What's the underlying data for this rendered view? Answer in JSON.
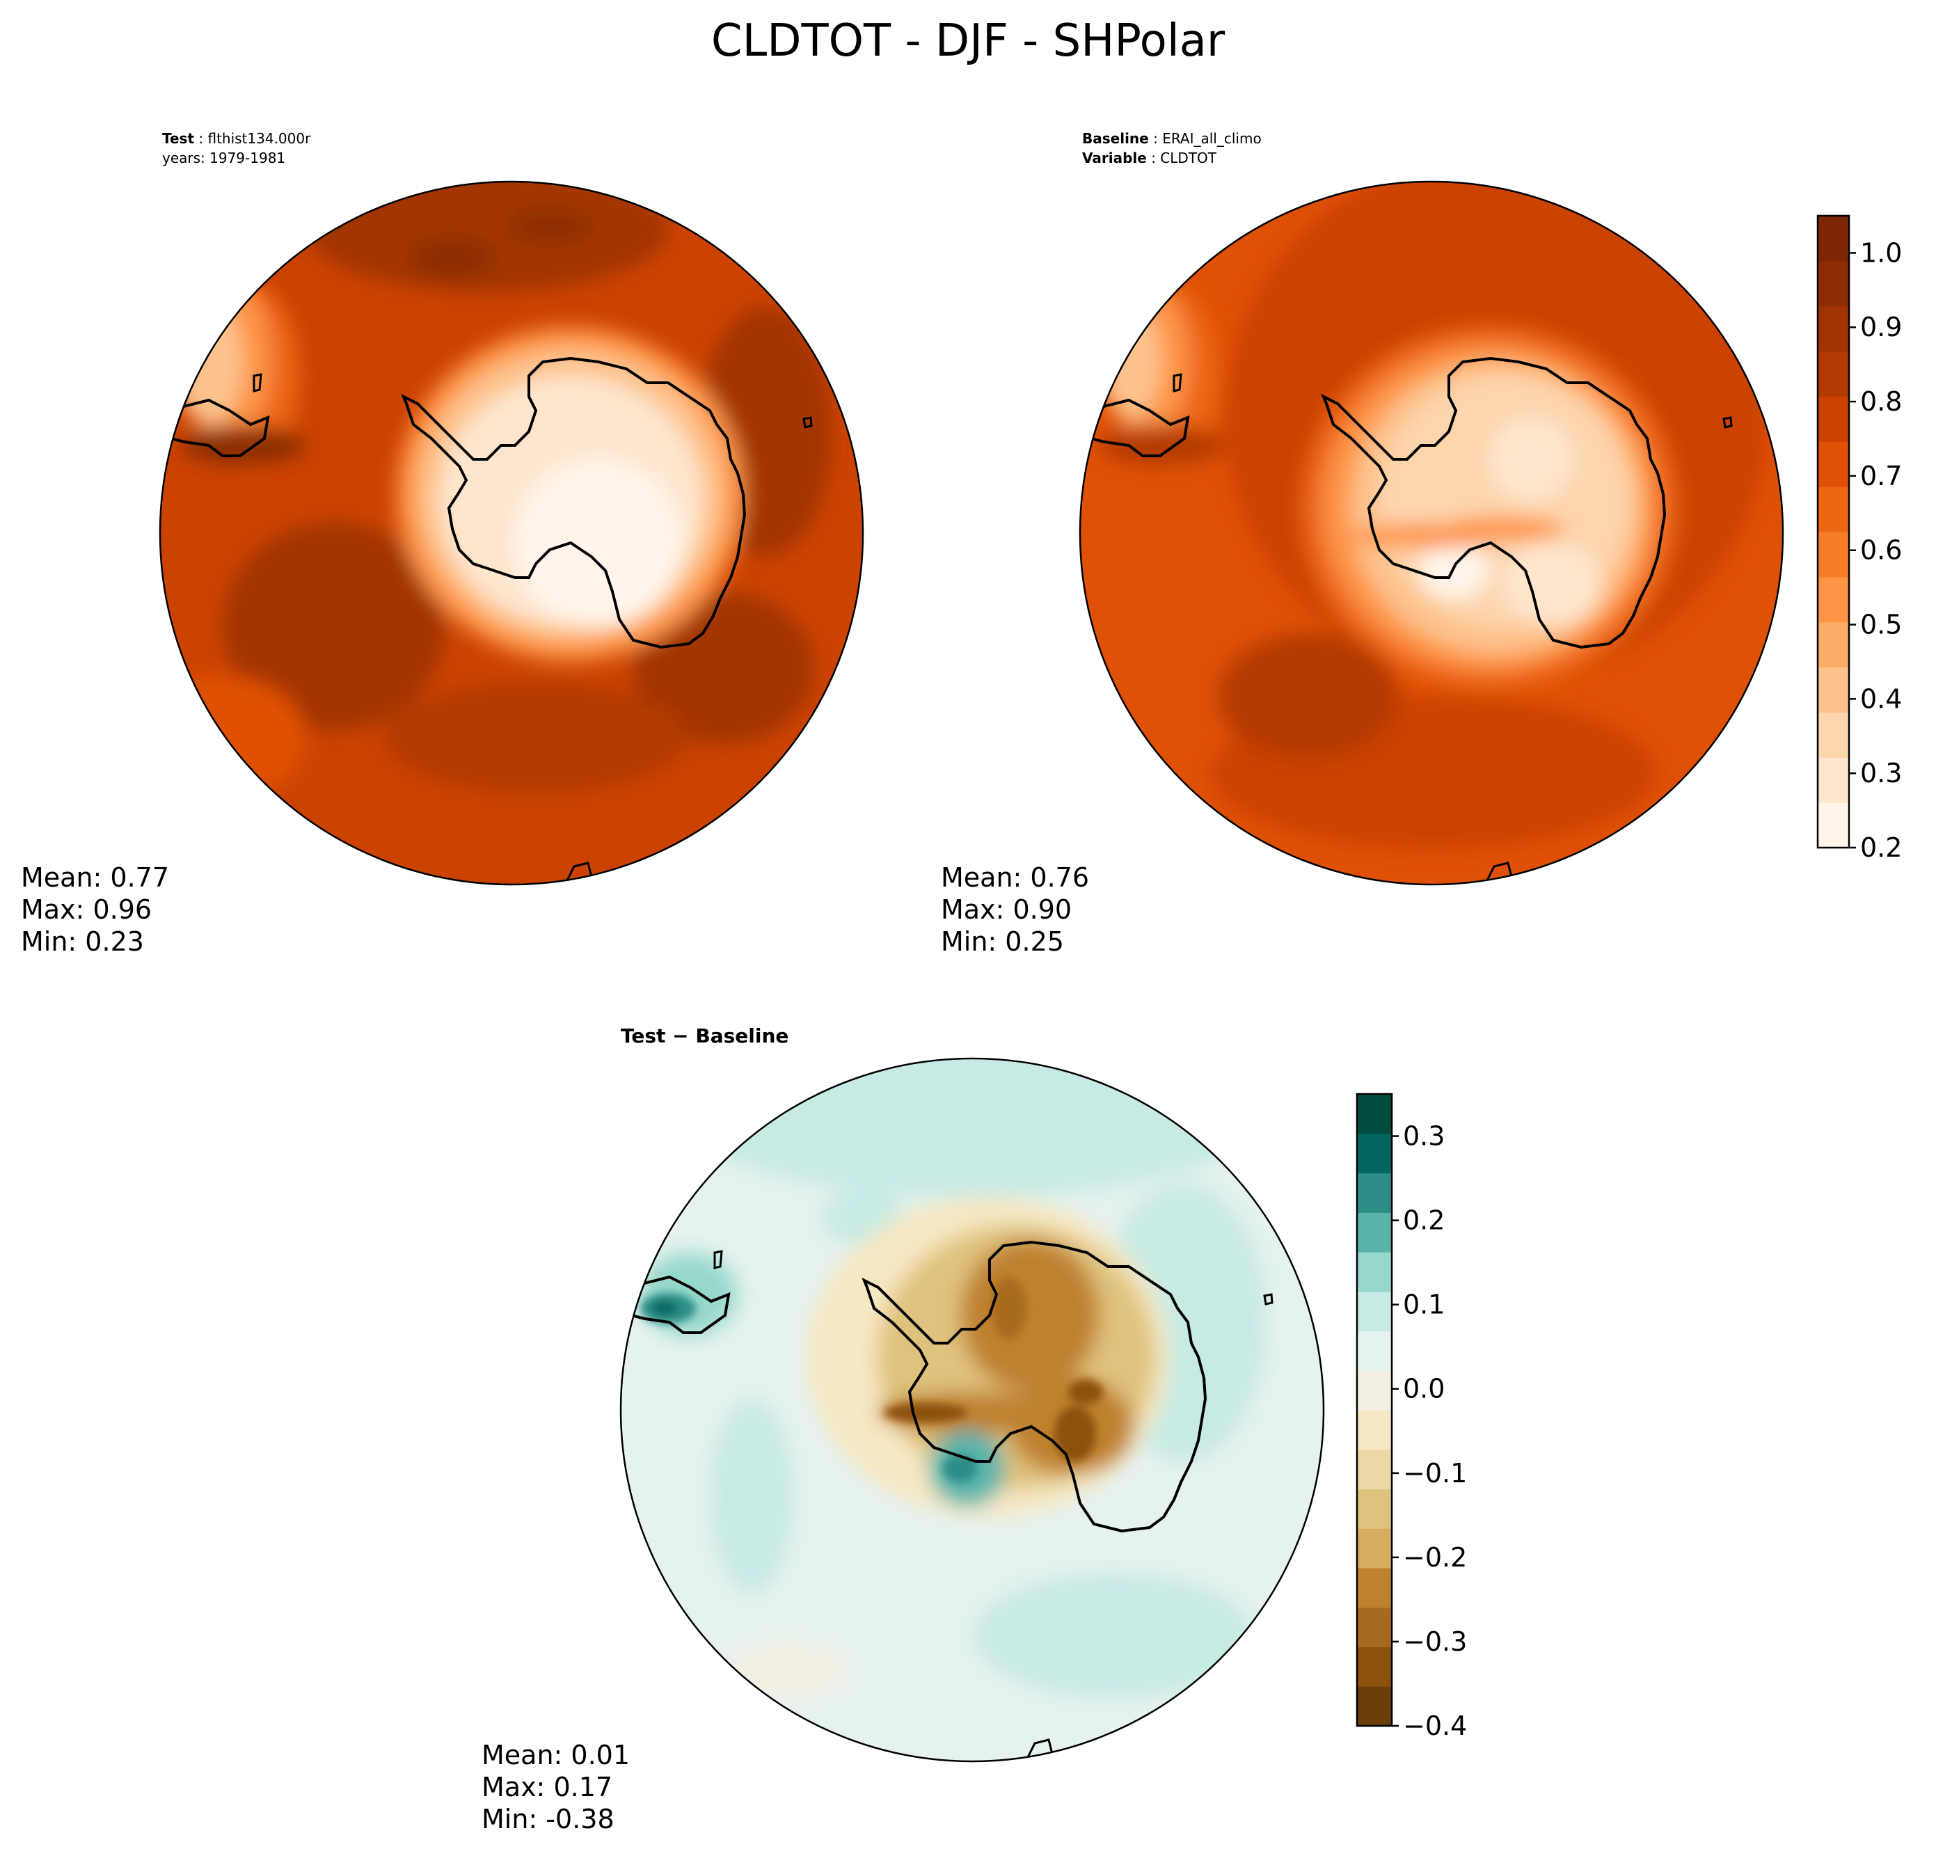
{
  "title": "CLDTOT - DJF - SHPolar",
  "panels": {
    "test": {
      "label_bold": "Test",
      "label_value": "flthist134.000r",
      "sub_line": "years: 1979-1981",
      "stats": {
        "mean": "Mean:  0.77",
        "max": "Max:  0.96",
        "min": "Min:  0.23"
      }
    },
    "baseline": {
      "label_bold": "Baseline",
      "label_value": "ERAI_all_climo",
      "var_bold": "Variable",
      "var_value": "CLDTOT",
      "stats": {
        "mean": "Mean:  0.76",
        "max": "Max:  0.90",
        "min": "Min:  0.25"
      }
    },
    "diff": {
      "label": "Test − Baseline",
      "stats": {
        "mean": "Mean:  0.01",
        "max": "Max:  0.17",
        "min": "Min: -0.38"
      }
    }
  },
  "colorbars": {
    "main": {
      "ticks": [
        "0.2",
        "0.3",
        "0.4",
        "0.5",
        "0.6",
        "0.7",
        "0.8",
        "0.9",
        "1.0"
      ],
      "colors": [
        "#fff5eb",
        "#fee6ce",
        "#fdd6ae",
        "#fdc28c",
        "#fdac68",
        "#fd9446",
        "#f67e29",
        "#ec6614",
        "#df5106",
        "#cc4301",
        "#b33a02",
        "#a23403",
        "#8c2d04",
        "#7f2704"
      ]
    },
    "diff": {
      "ticks": [
        "−0.4",
        "−0.3",
        "−0.2",
        "−0.1",
        "0.0",
        "0.1",
        "0.2",
        "0.3"
      ],
      "colors": [
        "#6a3d0a",
        "#8c510a",
        "#a86a1f",
        "#bf812d",
        "#d6ac5e",
        "#dfc27d",
        "#ecd9a8",
        "#f6e8c3",
        "#f3efe2",
        "#e6f2ef",
        "#c7eae5",
        "#97d8cc",
        "#5ab4ac",
        "#2c8e86",
        "#01665e",
        "#004d40"
      ]
    }
  },
  "chart_data": [
    {
      "type": "heatmap",
      "name": "Test",
      "projection": "south polar stereographic",
      "variable": "CLDTOT",
      "season": "DJF",
      "years": "1979-1981",
      "color_range": [
        0.2,
        1.05
      ],
      "colormap": "Oranges",
      "stats": {
        "mean": 0.77,
        "max": 0.96,
        "min": 0.23
      },
      "field_description": {
        "southern_ocean": [
          0.85,
          0.96
        ],
        "midlatitudes": [
          0.75,
          0.85
        ],
        "antarctic_interior": [
          0.23,
          0.4
        ]
      }
    },
    {
      "type": "heatmap",
      "name": "Baseline",
      "dataset": "ERAI_all_climo",
      "projection": "south polar stereographic",
      "variable": "CLDTOT",
      "color_range": [
        0.2,
        1.05
      ],
      "colormap": "Oranges",
      "stats": {
        "mean": 0.76,
        "max": 0.9,
        "min": 0.25
      },
      "field_description": {
        "southern_ocean": [
          0.82,
          0.9
        ],
        "midlatitudes": [
          0.75,
          0.82
        ],
        "antarctic_interior": [
          0.25,
          0.55
        ]
      }
    },
    {
      "type": "heatmap",
      "name": "Test − Baseline",
      "projection": "south polar stereographic",
      "color_range": [
        -0.4,
        0.35
      ],
      "colormap": "BrBG",
      "stats": {
        "mean": 0.01,
        "max": 0.17,
        "min": -0.38
      },
      "field_description": {
        "ocean": [
          0.0,
          0.1
        ],
        "east_antarctica": [
          -0.38,
          -0.1
        ],
        "peninsula_tip": [
          0.1,
          0.17
        ]
      }
    }
  ]
}
